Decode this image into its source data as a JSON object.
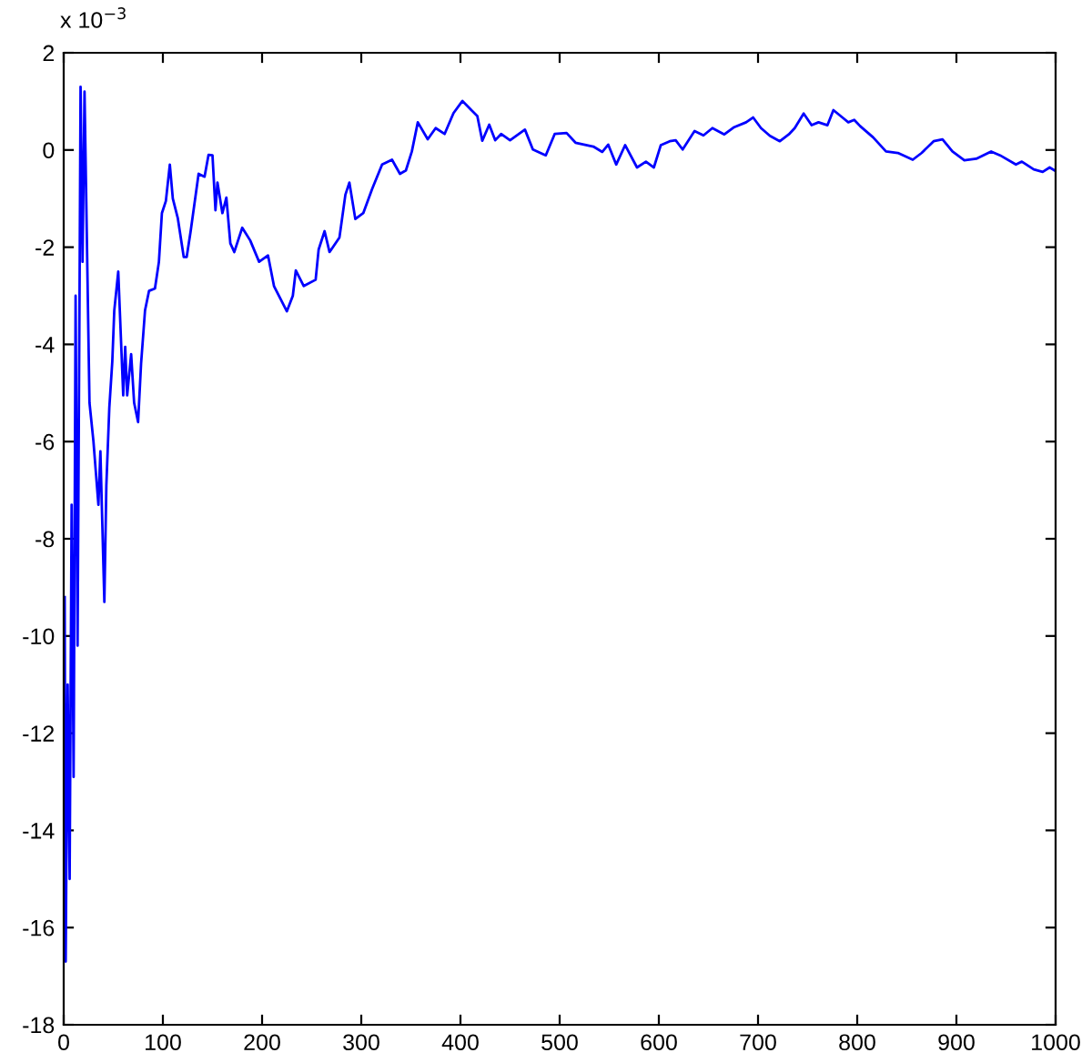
{
  "chart_data": {
    "type": "line",
    "annotations": [
      "x 10$^{−3}$"
    ],
    "xlim": [
      0,
      1000
    ],
    "xticks": [
      0,
      100,
      200,
      300,
      400,
      500,
      600,
      700,
      800,
      900,
      1000
    ],
    "ylim": [
      -18,
      2
    ],
    "yticks": [
      -18,
      -16,
      -14,
      -12,
      -10,
      -8,
      -6,
      -4,
      -2,
      0,
      2
    ],
    "grid": false,
    "marker": "none",
    "line_style": "solid",
    "series": [
      {
        "color": "#0000ff",
        "x": [
          1,
          2,
          4,
          6,
          8,
          10,
          12,
          14,
          16,
          17,
          19,
          21,
          26,
          30,
          35,
          37,
          41,
          43,
          46,
          49,
          51,
          55,
          60,
          62,
          64,
          68,
          71,
          75,
          78,
          82,
          86,
          92,
          96,
          99,
          103,
          107,
          110,
          115,
          121,
          124,
          128,
          136,
          142,
          146,
          150,
          153,
          155,
          160,
          164,
          168,
          172,
          180,
          188,
          197,
          206,
          212,
          225,
          231,
          234,
          242,
          254,
          257,
          263,
          268,
          278,
          284,
          288,
          294,
          302,
          311,
          321,
          331,
          339,
          345,
          351,
          357,
          367,
          375,
          384,
          393,
          402,
          411,
          417,
          422,
          429,
          435,
          441,
          450,
          465,
          473,
          486,
          495,
          507,
          516,
          534,
          543,
          549,
          557,
          566,
          578,
          587,
          595,
          602,
          611,
          617,
          624,
          636,
          645,
          654,
          666,
          676,
          688,
          695,
          703,
          712,
          722,
          731,
          737,
          746,
          754,
          761,
          770,
          776,
          785,
          791,
          797,
          803,
          816,
          829,
          841,
          856,
          865,
          877,
          886,
          896,
          908,
          920,
          935,
          944,
          960,
          966,
          978,
          987,
          994,
          999
        ],
        "values": [
          -9.2,
          -16.7,
          -11,
          -15,
          -7.3,
          -12.9,
          -3,
          -10.2,
          -2.85,
          1.3,
          -2.3,
          1.2,
          -5.2,
          -6.0,
          -7.3,
          -6.2,
          -9.3,
          -6.9,
          -5.3,
          -4.35,
          -3.3,
          -2.5,
          -5.05,
          -4.05,
          -5.05,
          -4.2,
          -5.2,
          -5.6,
          -4.4,
          -3.3,
          -2.9,
          -2.85,
          -2.3,
          -1.3,
          -1.05,
          -0.3,
          -1.0,
          -1.4,
          -2.2,
          -2.2,
          -1.67,
          -0.49,
          -0.55,
          -0.1,
          -0.11,
          -1.24,
          -0.67,
          -1.3,
          -0.98,
          -1.92,
          -2.1,
          -1.6,
          -1.86,
          -2.3,
          -2.17,
          -2.8,
          -3.32,
          -3.0,
          -2.48,
          -2.8,
          -2.67,
          -2.05,
          -1.67,
          -2.1,
          -1.8,
          -0.92,
          -0.67,
          -1.42,
          -1.3,
          -0.8,
          -0.3,
          -0.2,
          -0.49,
          -0.42,
          -0.03,
          0.57,
          0.22,
          0.45,
          0.33,
          0.76,
          1.01,
          0.82,
          0.7,
          0.19,
          0.52,
          0.2,
          0.33,
          0.2,
          0.42,
          0.01,
          -0.11,
          0.33,
          0.35,
          0.15,
          0.07,
          -0.04,
          0.11,
          -0.3,
          0.1,
          -0.36,
          -0.24,
          -0.36,
          0.1,
          0.18,
          0.2,
          0.01,
          0.39,
          0.3,
          0.45,
          0.32,
          0.47,
          0.57,
          0.67,
          0.45,
          0.29,
          0.18,
          0.32,
          0.45,
          0.75,
          0.51,
          0.57,
          0.51,
          0.82,
          0.67,
          0.57,
          0.62,
          0.49,
          0.26,
          -0.03,
          -0.06,
          -0.2,
          -0.06,
          0.18,
          0.22,
          -0.03,
          -0.21,
          -0.18,
          -0.03,
          -0.11,
          -0.3,
          -0.24,
          -0.4,
          -0.45,
          -0.36,
          -0.42
        ]
      }
    ]
  }
}
